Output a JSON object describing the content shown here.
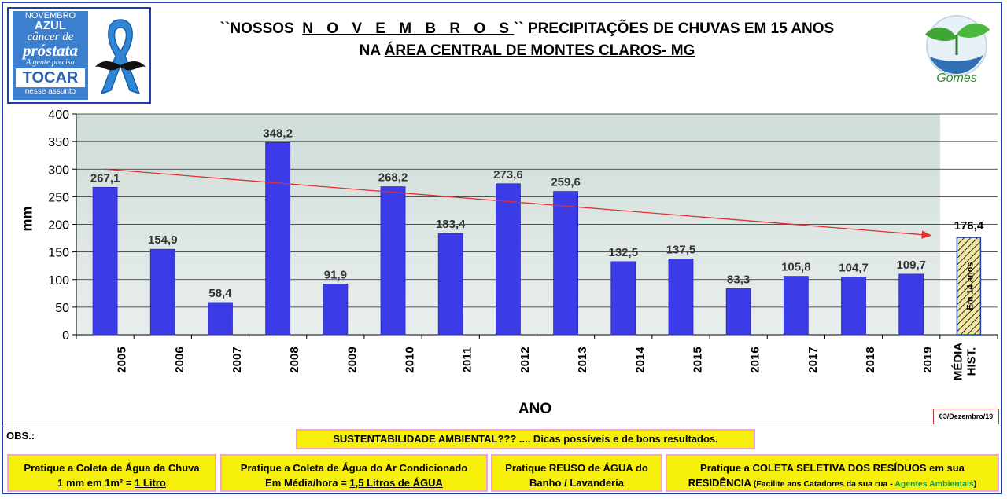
{
  "header": {
    "title_prefix": "``NOSSOS",
    "title_spaced": "N O V E M B R O S",
    "title_suffix": "`` PRECIPITAÇÕES DE CHUVAS EM 15 ANOS",
    "subtitle_prefix": "NA",
    "subtitle_underlined": "ÁREA CENTRAL DE MONTES CLAROS- MG"
  },
  "logo_left": {
    "line1": "NOVEMBRO",
    "line2": "AZUL",
    "line3": "câncer de",
    "line4": "próstata",
    "line5": "A gente precisa",
    "line6": "TOCAR",
    "line7": "nesse assunto"
  },
  "logo_right": {
    "text": "Gomes"
  },
  "chart_data": {
    "type": "bar",
    "xlabel": "ANO",
    "ylabel": "mm",
    "ylim": [
      0,
      400
    ],
    "yticks": [
      0,
      50,
      100,
      150,
      200,
      250,
      300,
      350,
      400
    ],
    "categories": [
      "2005",
      "2006",
      "2007",
      "2008",
      "2009",
      "2010",
      "2011",
      "2012",
      "2013",
      "2014",
      "2015",
      "2016",
      "2017",
      "2018",
      "2019"
    ],
    "values": [
      267.1,
      154.9,
      58.4,
      348.2,
      91.9,
      268.2,
      183.4,
      273.6,
      259.6,
      132.5,
      137.5,
      83.3,
      105.8,
      104.7,
      109.7
    ],
    "value_labels": [
      "267,1",
      "154,9",
      "58,4",
      "348,2",
      "91,9",
      "268,2",
      "183,4",
      "273,6",
      "259,6",
      "132,5",
      "137,5",
      "83,3",
      "105,8",
      "104,7",
      "109,7"
    ],
    "average": {
      "category_line1": "MÉDIA",
      "category_line2": "HIST.",
      "value": 176.4,
      "value_label": "176,4",
      "inner_label": "Em 14 anos"
    },
    "trend": {
      "start_value": 300,
      "end_value": 180
    },
    "colors": {
      "bar": "#3b3be8",
      "trend": "#e03030",
      "average_fill": "#f2e6a0",
      "average_hatch": "#2a2a2a"
    },
    "grid": true
  },
  "footer": {
    "date": "03/Dezembro/19",
    "obs_label": "OBS.:",
    "main_tip": "SUSTENTABILIDADE AMBIENTAL??? .... Dicas possíveis e de bons resultados.",
    "tip1_line1": "Pratique a Coleta de Água da Chuva",
    "tip1_line2_prefix": "1 mm em 1m² = ",
    "tip1_line2_underlined": "1 Litro",
    "tip2_line1": "Pratique a Coleta de Água do Ar Condicionado",
    "tip2_line2_prefix": "Em Média/hora = ",
    "tip2_line2_underlined": "1,5 Litros de ÁGUA",
    "tip3_line1": "Pratique REUSO de ÁGUA do",
    "tip3_line2": "Banho / Lavanderia",
    "tip4_line1": "Pratique a COLETA SELETIVA DOS RESÍDUOS em sua",
    "tip4_line2_bold": "RESIDÊNCIA",
    "tip4_line2_small": " (Facilite aos Catadores da sua rua - ",
    "tip4_line2_green": "Agentes Ambientais",
    "tip4_line2_end": ")"
  }
}
